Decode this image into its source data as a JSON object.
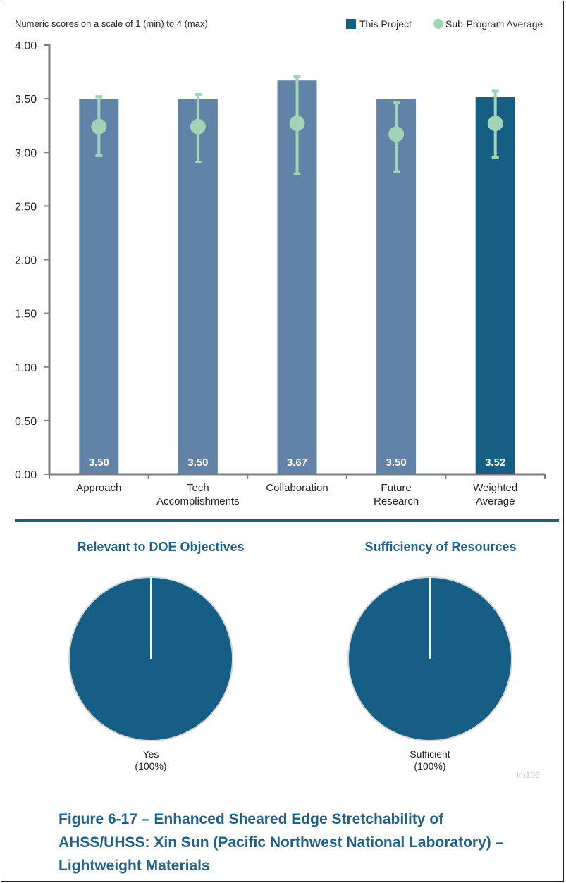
{
  "chart_data": {
    "type": "bar",
    "subtitle": "Numeric scores on a scale of 1 (min) to 4 (max)",
    "categories": [
      "Approach",
      "Tech Accomplishments",
      "Collaboration",
      "Future Research",
      "Weighted Average"
    ],
    "category_lines": [
      [
        "Approach"
      ],
      [
        "Tech",
        "Accomplishments"
      ],
      [
        "Collaboration"
      ],
      [
        "Future",
        "Research"
      ],
      [
        "Weighted",
        "Average"
      ]
    ],
    "series": [
      {
        "name": "This Project",
        "values": [
          3.5,
          3.5,
          3.67,
          3.5,
          3.52
        ],
        "value_labels": [
          "3.50",
          "3.50",
          "3.67",
          "3.50",
          "3.52"
        ],
        "color": "#6283a8",
        "highlight_color": "#175e85"
      },
      {
        "name": "Sub-Program Average",
        "values": [
          3.24,
          3.24,
          3.27,
          3.17,
          3.27
        ],
        "error_low": [
          2.97,
          2.91,
          2.8,
          2.82,
          2.95
        ],
        "error_high": [
          3.52,
          3.54,
          3.71,
          3.46,
          3.57
        ],
        "color": "#a3d3b5"
      }
    ],
    "ylim": [
      0,
      4
    ],
    "yticks": [
      "0.00",
      "0.50",
      "1.00",
      "1.50",
      "2.00",
      "2.50",
      "3.00",
      "3.50",
      "4.00"
    ],
    "legend_position": "top-right",
    "grid": false
  },
  "pies": [
    {
      "title": "Relevant to DOE Objectives",
      "slices": [
        {
          "label": "Yes",
          "percent_label": "(100%)",
          "value": 100
        }
      ],
      "color": "#175e85"
    },
    {
      "title": "Sufficiency of  Resources",
      "slices": [
        {
          "label": "Sufficient",
          "percent_label": "(100%)",
          "value": 100
        }
      ],
      "color": "#175e85"
    }
  ],
  "watermark": "lm106",
  "caption": "Figure 6-17 – Enhanced Sheared Edge Stretchability of AHSS/UHSS: Xin Sun (Pacific Northwest National Laboratory) – Lightweight Materials",
  "colors": {
    "accent": "#1f6189",
    "divider": "#175e85",
    "axis": "#7a7c7f",
    "pie_border": "#d4d6d8"
  }
}
